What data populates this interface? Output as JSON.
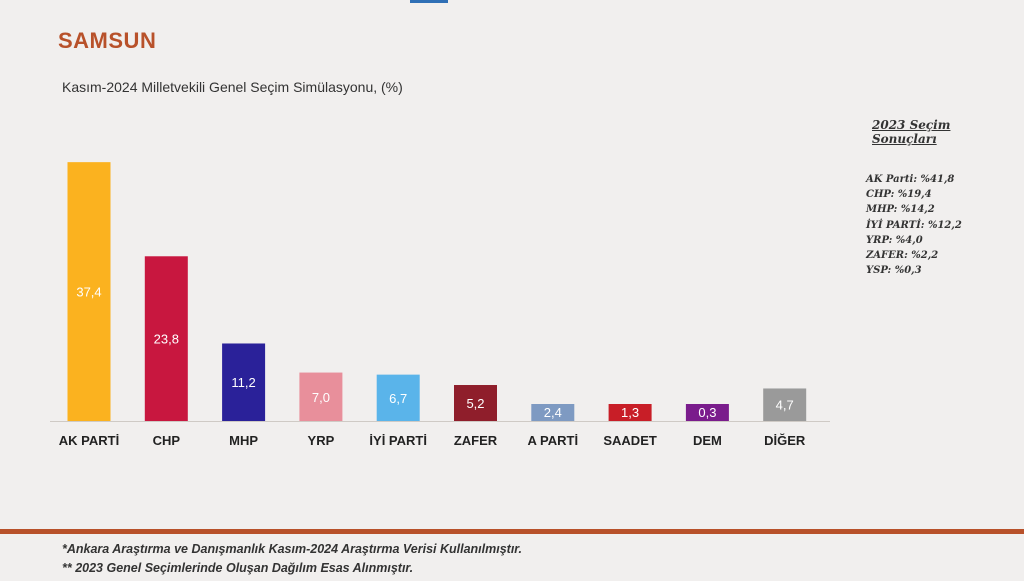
{
  "title": "SAMSUN",
  "subtitle": "Kasım-2024 Milletvekili Genel Seçim Simülasyonu, (%)",
  "chart_data": {
    "type": "bar",
    "categories": [
      "AK PARTİ",
      "CHP",
      "MHP",
      "YRP",
      "İYİ PARTİ",
      "ZAFER",
      "A PARTİ",
      "SAADET",
      "DEM",
      "DİĞER"
    ],
    "values": [
      37.4,
      23.8,
      11.2,
      7.0,
      6.7,
      5.2,
      2.4,
      1.3,
      0.3,
      4.7
    ],
    "value_labels": [
      "37,4",
      "23,8",
      "11,2",
      "7,0",
      "6,7",
      "5,2",
      "2,4",
      "1,3",
      "0,3",
      "4,7"
    ],
    "colors": [
      "#fbb21f",
      "#c8173f",
      "#2a2199",
      "#e88f9b",
      "#5ab4ea",
      "#8f1e2b",
      "#7e9ac2",
      "#c81e27",
      "#7a1c8c",
      "#9a9a9a"
    ],
    "grid": false,
    "legend": "none",
    "ylim": [
      0,
      38
    ]
  },
  "side_panel": {
    "title": "2023 Seçim Sonuçları",
    "items": [
      "AK Parti: %41,8",
      "CHP: %19,4",
      "MHP: %14,2",
      "İYİ PARTİ: %12,2",
      "YRP: %4,0",
      "ZAFER: %2,2",
      "YSP: %0,3"
    ]
  },
  "footnotes": [
    "*Ankara Araştırma ve Danışmanlık Kasım-2024 Araştırma Verisi Kullanılmıştır.",
    "** 2023 Genel Seçimlerinde Oluşan Dağılım Esas Alınmıştır."
  ],
  "colors": {
    "accent": "#b8512a",
    "background": "#f1efee"
  }
}
